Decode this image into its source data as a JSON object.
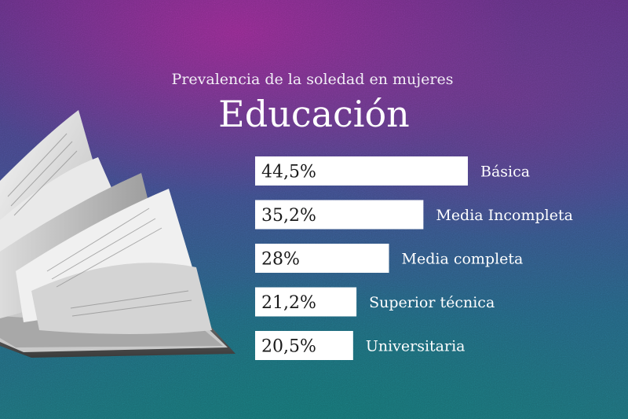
{
  "chart_data": {
    "type": "bar",
    "orientation": "horizontal",
    "title": "Educación",
    "subtitle": "Prevalencia de la soledad en mujeres",
    "categories": [
      "Básica",
      "Media Incompleta",
      "Media completa",
      "Superior técnica",
      "Universitaria"
    ],
    "values": [
      44.5,
      35.2,
      28,
      21.2,
      20.5
    ],
    "value_labels": [
      "44,5%",
      "35,2%",
      "28%",
      "21,2%",
      "20,5%"
    ],
    "xlim": [
      0,
      50
    ],
    "grid": false,
    "bar_color": "#ffffff"
  },
  "colors": {
    "background_top": "#5a2f7d",
    "background_bottom": "#1d6a74",
    "text": "#ffffff",
    "value_text": "#1a1a1a"
  }
}
